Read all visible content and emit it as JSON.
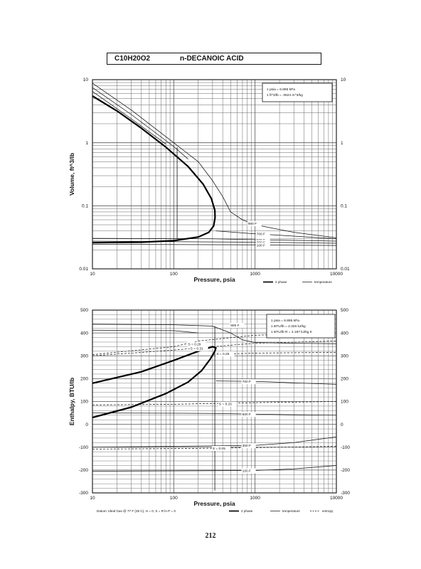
{
  "header": {
    "formula": "C10H20O2",
    "name": "n-DECANOIC ACID"
  },
  "page_number": "212",
  "chart_data": [
    {
      "type": "line",
      "xlabel": "Pressure,  psia",
      "ylabel": "Volume,  ft^3/lb",
      "x_scale": "log",
      "y_scale": "log",
      "xlim": [
        10,
        10000
      ],
      "ylim": [
        0.01,
        10
      ],
      "x_ticks": [
        "10",
        "100",
        "1000",
        "10000"
      ],
      "y_ticks": [
        "0.01",
        "0.1",
        "1",
        "10"
      ],
      "grid": true,
      "conversion_note": [
        "1 psia = 6.895 kPa",
        "1 ft^3/lb = .0624 m^3/kg"
      ],
      "legend": [
        "2 phase",
        "temperature"
      ],
      "two_phase": [
        {
          "x": 10,
          "y": 5.5
        },
        {
          "x": 20,
          "y": 3.2
        },
        {
          "x": 40,
          "y": 1.7
        },
        {
          "x": 80,
          "y": 0.85
        },
        {
          "x": 150,
          "y": 0.42
        },
        {
          "x": 230,
          "y": 0.22
        },
        {
          "x": 290,
          "y": 0.13
        },
        {
          "x": 320,
          "y": 0.085
        },
        {
          "x": 322,
          "y": 0.065
        },
        {
          "x": 310,
          "y": 0.048
        },
        {
          "x": 270,
          "y": 0.038
        },
        {
          "x": 200,
          "y": 0.032
        },
        {
          "x": 100,
          "y": 0.028
        },
        {
          "x": 40,
          "y": 0.0265
        },
        {
          "x": 10,
          "y": 0.026
        }
      ],
      "isotherms": [
        {
          "label": "900 F",
          "points": [
            {
              "x": 10,
              "y": 8.8
            },
            {
              "x": 30,
              "y": 3.3
            },
            {
              "x": 100,
              "y": 1.0
            },
            {
              "x": 200,
              "y": 0.5
            },
            {
              "x": 300,
              "y": 0.25
            },
            {
              "x": 400,
              "y": 0.14
            },
            {
              "x": 500,
              "y": 0.08
            },
            {
              "x": 700,
              "y": 0.06
            },
            {
              "x": 1000,
              "y": 0.05
            },
            {
              "x": 3000,
              "y": 0.038
            },
            {
              "x": 10000,
              "y": 0.031
            }
          ]
        },
        {
          "label": "",
          "points": [
            {
              "x": 10,
              "y": 7.5
            },
            {
              "x": 30,
              "y": 2.8
            },
            {
              "x": 100,
              "y": 0.87
            },
            {
              "x": 150,
              "y": 0.55
            }
          ]
        },
        {
          "label": "",
          "points": [
            {
              "x": 10,
              "y": 6.5
            },
            {
              "x": 30,
              "y": 2.4
            },
            {
              "x": 80,
              "y": 0.95
            }
          ]
        },
        {
          "label": "700 F",
          "points": [
            {
              "x": 330,
              "y": 0.04
            },
            {
              "x": 1000,
              "y": 0.036
            },
            {
              "x": 3000,
              "y": 0.033
            },
            {
              "x": 10000,
              "y": 0.03
            }
          ]
        },
        {
          "label": "500 F",
          "points": [
            {
              "x": 10,
              "y": 0.0305
            },
            {
              "x": 300,
              "y": 0.03
            },
            {
              "x": 1000,
              "y": 0.029
            },
            {
              "x": 10000,
              "y": 0.0275
            }
          ]
        },
        {
          "label": "300 F",
          "points": [
            {
              "x": 10,
              "y": 0.0275
            },
            {
              "x": 1000,
              "y": 0.0265
            },
            {
              "x": 10000,
              "y": 0.0255
            }
          ]
        },
        {
          "label": "100 F",
          "points": [
            {
              "x": 10,
              "y": 0.0245
            },
            {
              "x": 1000,
              "y": 0.024
            },
            {
              "x": 10000,
              "y": 0.0235
            }
          ]
        }
      ],
      "vertical_marks": [
        {
          "x": 110,
          "y1": 0.03,
          "y2": 0.85
        }
      ]
    },
    {
      "type": "line",
      "xlabel": "Pressure,  psia",
      "ylabel": "Enthalpy,  BTU/lb",
      "x_scale": "log",
      "xlim": [
        10,
        10000
      ],
      "ylim": [
        -300,
        500
      ],
      "x_ticks": [
        "10",
        "100",
        "1000",
        "10000"
      ],
      "y_ticks": [
        "-300",
        "-200",
        "-100",
        "0",
        "100",
        "200",
        "300",
        "400",
        "500"
      ],
      "grid": true,
      "conversion_note": [
        "1 psia = 6.895 kPa",
        "1 BTU/lb = 2.326 kJ/kg",
        "1 BTU/lb R = 4.187 kJ/kg K"
      ],
      "footnote": "Datum: Ideal Gas @ 77 F (25 C), H = 0, S = R ln P = 0",
      "legend": [
        "2 phase",
        "temperature",
        "entropy"
      ],
      "two_phase": [
        {
          "x": 10,
          "y": 30
        },
        {
          "x": 30,
          "y": 75
        },
        {
          "x": 80,
          "y": 135
        },
        {
          "x": 150,
          "y": 185
        },
        {
          "x": 220,
          "y": 235
        },
        {
          "x": 280,
          "y": 285
        },
        {
          "x": 320,
          "y": 320
        },
        {
          "x": 330,
          "y": 335
        },
        {
          "x": 300,
          "y": 340
        },
        {
          "x": 200,
          "y": 320
        },
        {
          "x": 100,
          "y": 280
        },
        {
          "x": 40,
          "y": 230
        },
        {
          "x": 10,
          "y": 180
        }
      ],
      "isotherms": [
        {
          "label": "900 F",
          "points": [
            {
              "x": 10,
              "y": 438
            },
            {
              "x": 100,
              "y": 436
            },
            {
              "x": 300,
              "y": 430
            },
            {
              "x": 500,
              "y": 400
            },
            {
              "x": 700,
              "y": 370
            },
            {
              "x": 1000,
              "y": 358
            },
            {
              "x": 3000,
              "y": 355
            },
            {
              "x": 10000,
              "y": 353
            }
          ]
        },
        {
          "label": "",
          "points": [
            {
              "x": 10,
              "y": 412
            },
            {
              "x": 100,
              "y": 410
            },
            {
              "x": 200,
              "y": 400
            }
          ]
        },
        {
          "label": "700 F",
          "points": [
            {
              "x": 330,
              "y": 190
            },
            {
              "x": 1000,
              "y": 188
            },
            {
              "x": 3000,
              "y": 182
            },
            {
              "x": 10000,
              "y": 175
            }
          ]
        },
        {
          "label": "500 F",
          "points": [
            {
              "x": 10,
              "y": 50
            },
            {
              "x": 300,
              "y": 48
            },
            {
              "x": 1000,
              "y": 45
            },
            {
              "x": 3000,
              "y": 42
            },
            {
              "x": 10000,
              "y": 40
            }
          ]
        },
        {
          "label": "300 F",
          "points": [
            {
              "x": 10,
              "y": -100
            },
            {
              "x": 1000,
              "y": -92
            },
            {
              "x": 3000,
              "y": -80
            },
            {
              "x": 10000,
              "y": -55
            }
          ]
        },
        {
          "label": "100 F",
          "points": [
            {
              "x": 10,
              "y": -205
            },
            {
              "x": 1000,
              "y": -202
            },
            {
              "x": 3000,
              "y": -195
            },
            {
              "x": 10000,
              "y": -180
            }
          ]
        }
      ],
      "entropy_lines": [
        {
          "label": "S = 0.29",
          "points": [
            {
              "x": 10,
              "y": 305
            },
            {
              "x": 100,
              "y": 340
            },
            {
              "x": 200,
              "y": 365
            },
            {
              "x": 1000,
              "y": 390
            },
            {
              "x": 10000,
              "y": 400
            }
          ]
        },
        {
          "label": "S = 0.31",
          "points": [
            {
              "x": 10,
              "y": 300
            },
            {
              "x": 100,
              "y": 325
            },
            {
              "x": 300,
              "y": 340
            },
            {
              "x": 1000,
              "y": 355
            },
            {
              "x": 10000,
              "y": 365
            }
          ]
        },
        {
          "label": "S = 0.25",
          "points": [
            {
              "x": 300,
              "y": 305
            },
            {
              "x": 1000,
              "y": 312
            },
            {
              "x": 10000,
              "y": 315
            }
          ]
        },
        {
          "label": "S = 0.15",
          "points": [
            {
              "x": 10,
              "y": 85
            },
            {
              "x": 100,
              "y": 88
            },
            {
              "x": 1000,
              "y": 95
            },
            {
              "x": 10000,
              "y": 100
            }
          ]
        },
        {
          "label": "S = 0.05",
          "points": [
            {
              "x": 10,
              "y": -108
            },
            {
              "x": 100,
              "y": -106
            },
            {
              "x": 1000,
              "y": -102
            },
            {
              "x": 10000,
              "y": -96
            }
          ]
        }
      ],
      "vertical_marks": [
        {
          "x": 320,
          "y1": -290,
          "y2": 430
        }
      ]
    }
  ]
}
